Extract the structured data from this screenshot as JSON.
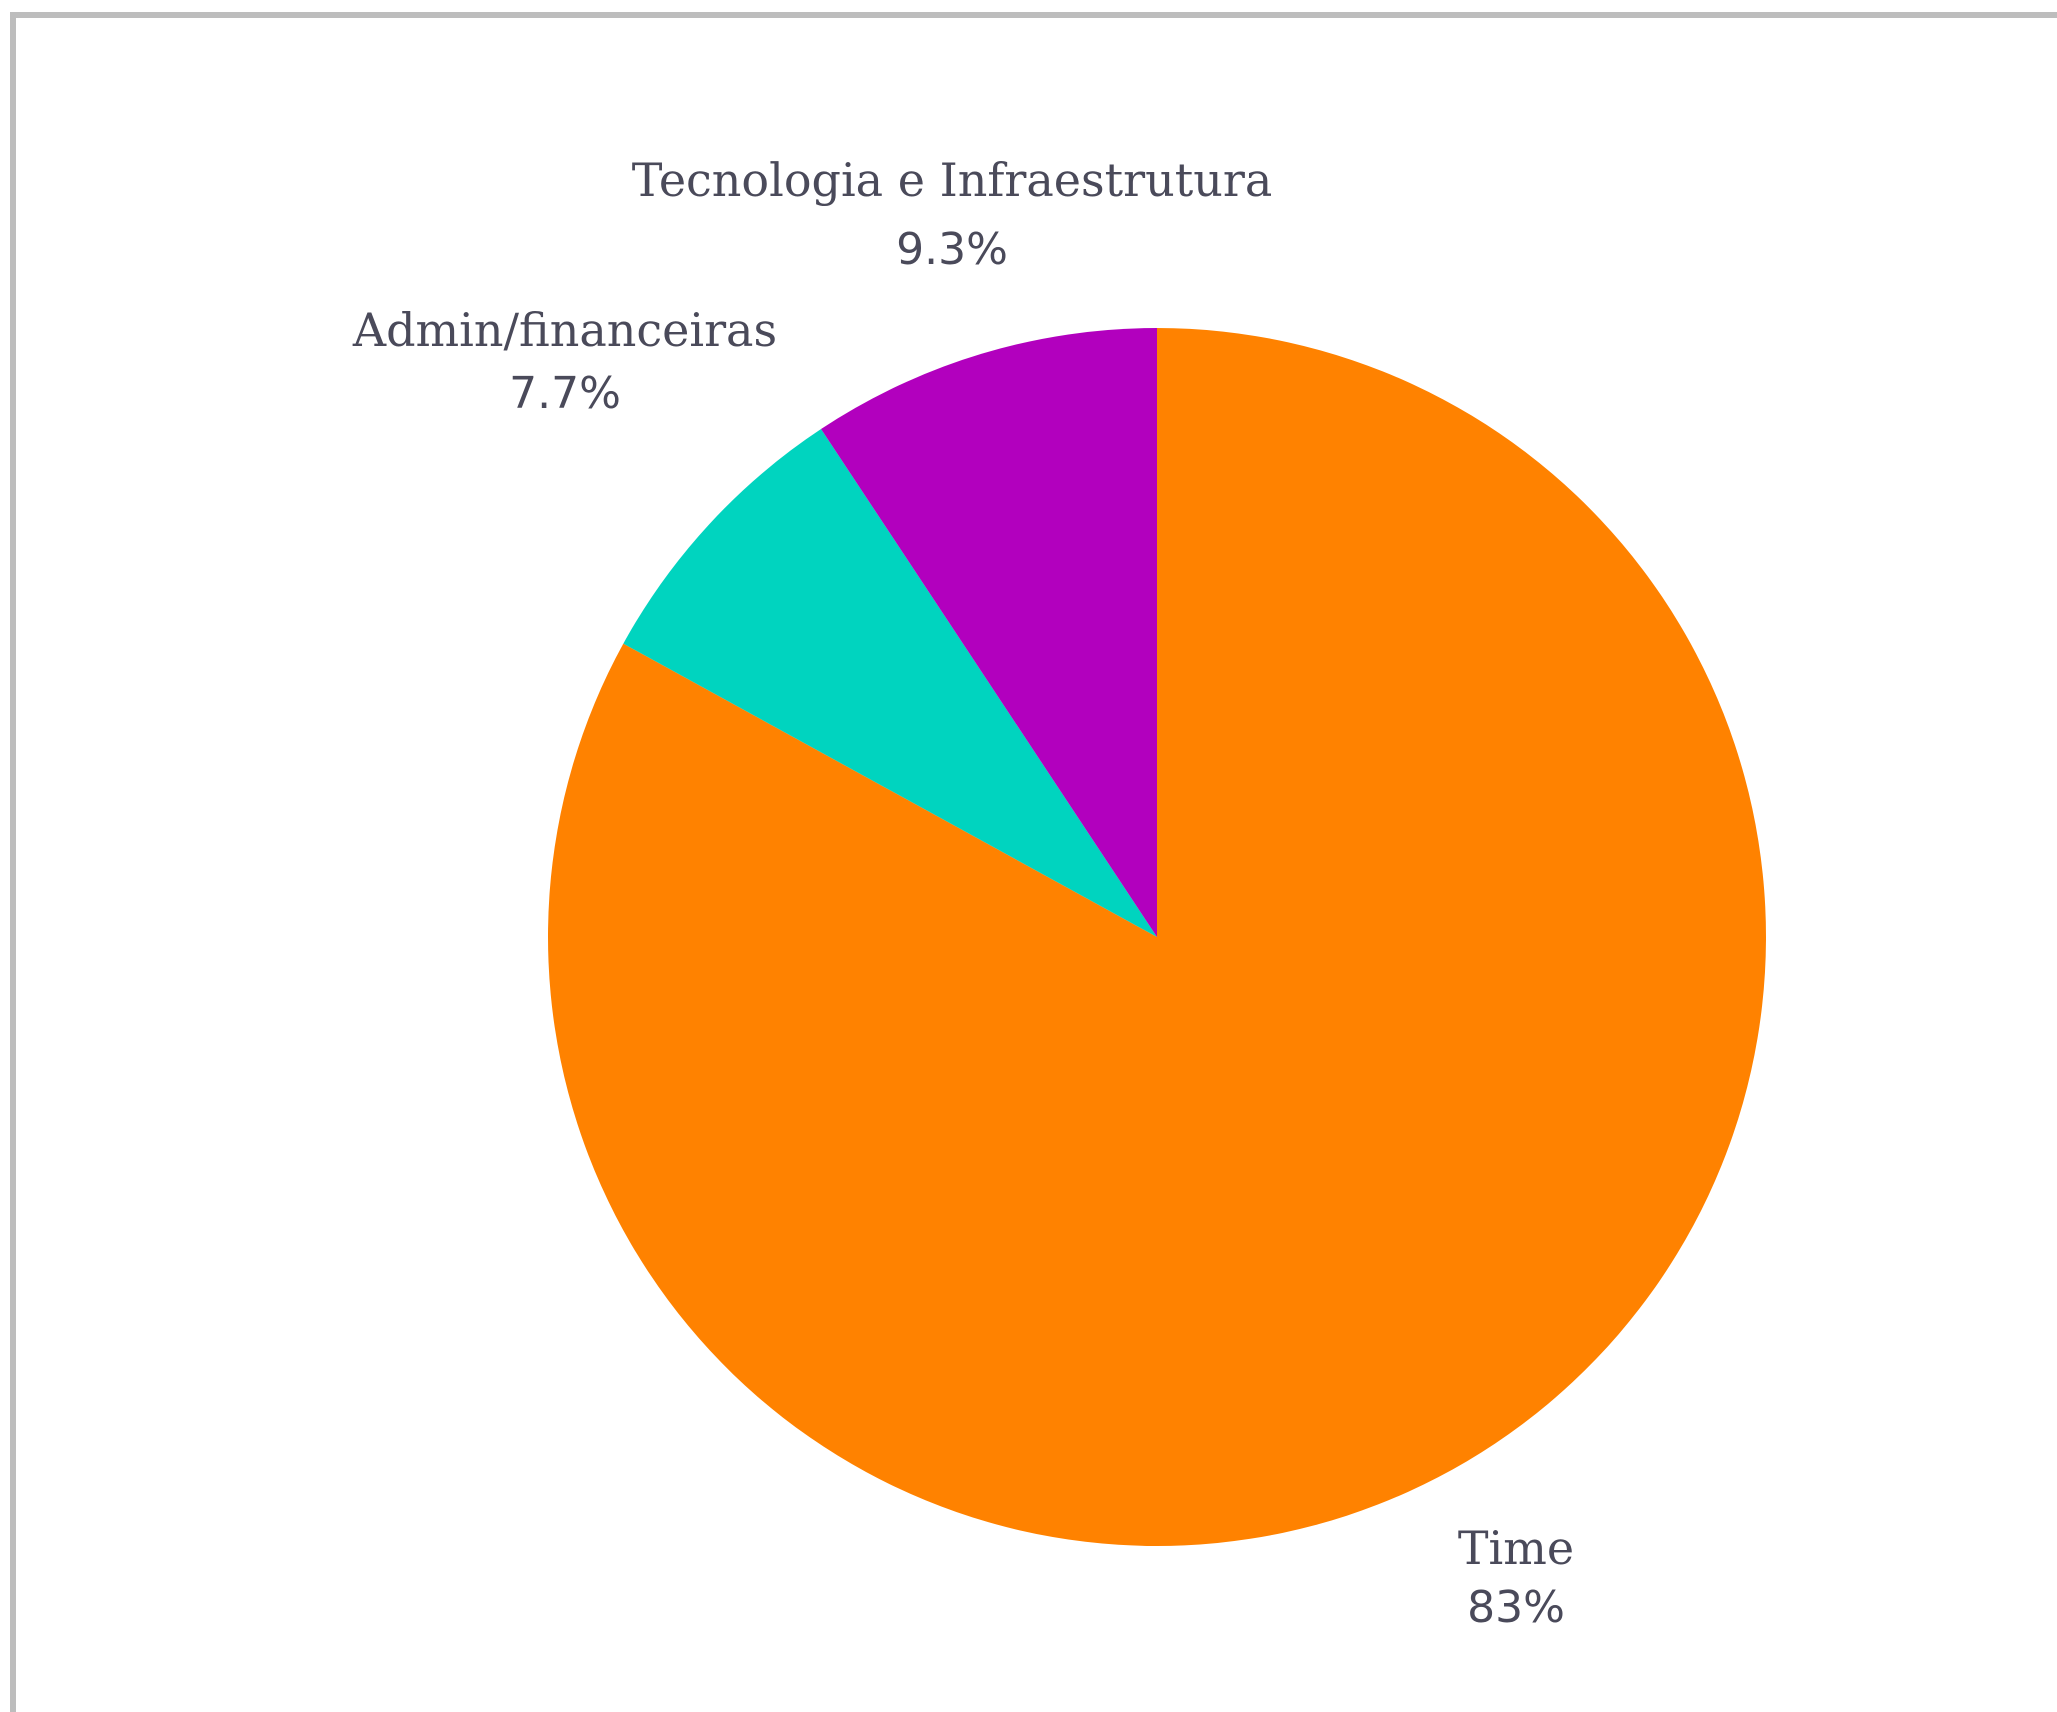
{
  "chart_data": {
    "type": "pie",
    "start_angle_deg": 0,
    "direction": "clockwise",
    "slices": [
      {
        "label": "Time",
        "value_label": "83%",
        "value": 83.0,
        "color": "#FF8200"
      },
      {
        "label": "Admin/financeiras",
        "value_label": "7.7%",
        "value": 7.7,
        "color": "#00D4BF"
      },
      {
        "label": "Tecnologia e Infraestrutura",
        "value_label": "9.3%",
        "value": 9.3,
        "color": "#B200BE"
      }
    ]
  }
}
